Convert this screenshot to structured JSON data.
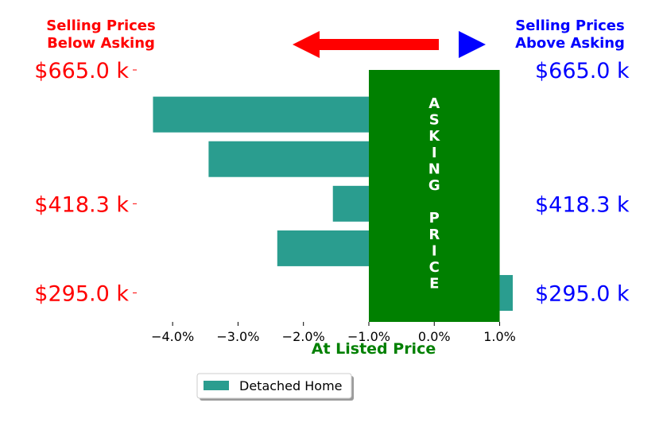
{
  "header": {
    "left_line1": "Selling Prices",
    "left_line2": "Below Asking",
    "right_line1": "Selling Prices",
    "right_line2": "Above Asking"
  },
  "colors": {
    "below": "#ff0000",
    "above": "#0000ff",
    "bar": "#2a9d8f",
    "asking": "#008000",
    "asking_text": "#ffffff"
  },
  "asking_block": {
    "word1": [
      "A",
      "S",
      "K",
      "I",
      "N",
      "G"
    ],
    "word2": [
      "P",
      "R",
      "I",
      "C",
      "E"
    ]
  },
  "chart_data": {
    "type": "bar",
    "orientation": "horizontal",
    "xlabel": "At Listed Price",
    "xlim": [
      -4.5,
      1.2
    ],
    "xticks": [
      -4.0,
      -3.0,
      -2.0,
      -1.0,
      0.0,
      1.0
    ],
    "xtick_labels": [
      "−4.0%",
      "−3.0%",
      "−2.0%",
      "−1.0%",
      "0.0%",
      "1.0%"
    ],
    "ylim": [
      0,
      5.65
    ],
    "left_ytick_labels": [
      {
        "label": "$665.0 k",
        "pos": 5.65
      },
      {
        "label": "$418.3 k",
        "pos": 2.65
      },
      {
        "label": "$295.0 k",
        "pos": 0.65
      }
    ],
    "right_ytick_labels": [
      {
        "label": "$665.0 k",
        "pos": 5.65
      },
      {
        "label": "$418.3 k",
        "pos": 2.65
      },
      {
        "label": "$295.0 k",
        "pos": 0.65
      }
    ],
    "series": [
      {
        "name": "Detached Home",
        "positions": [
          4.65,
          3.65,
          2.65,
          1.65,
          0.65
        ],
        "values": [
          -4.3,
          -3.45,
          -1.55,
          -2.4,
          1.2
        ]
      }
    ],
    "asking_span": [
      -1.0,
      1.0
    ],
    "legend_position": "bottom-center",
    "grid": false
  }
}
